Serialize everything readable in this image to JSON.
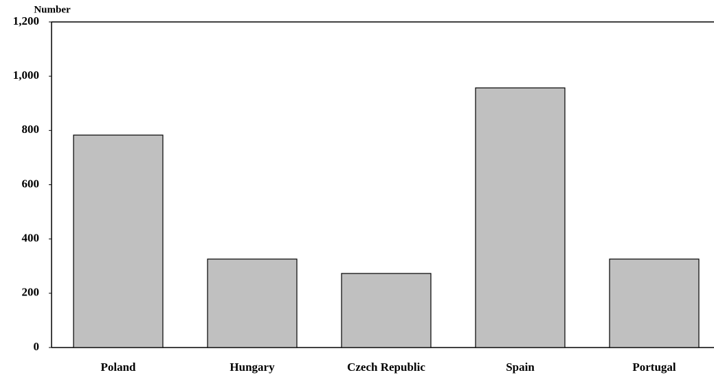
{
  "chart_data": {
    "type": "bar",
    "y_axis_label": "Number",
    "categories": [
      "Poland",
      "Hungary",
      "Czech Republic",
      "Spain",
      "Portugal"
    ],
    "values": [
      783,
      326,
      273,
      957,
      326
    ],
    "color": "#c0c0c0",
    "ylim": [
      0,
      1200
    ],
    "yticks": [
      0,
      200,
      400,
      600,
      800,
      {
        "value": 1000,
        "label": "1,000"
      },
      {
        "value": 1200,
        "label": "1,200"
      }
    ],
    "grid": false
  }
}
